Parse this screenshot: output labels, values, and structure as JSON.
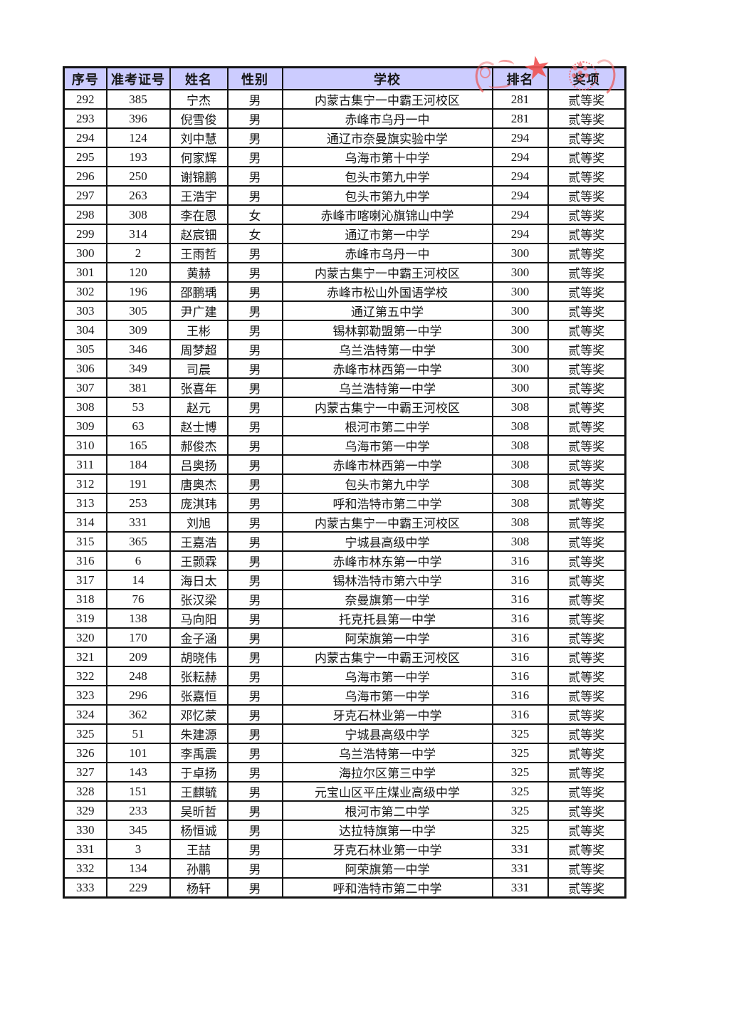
{
  "document": {
    "background": "#ffffff",
    "header_bg": "#ccccff",
    "border_color": "#141414"
  },
  "table": {
    "columns": [
      "序号",
      "准考证号",
      "姓名",
      "性别",
      "学校",
      "排名",
      "奖项"
    ],
    "rows": [
      [
        "292",
        "385",
        "宁杰",
        "男",
        "内蒙古集宁一中霸王河校区",
        "281",
        "贰等奖"
      ],
      [
        "293",
        "396",
        "倪雪俊",
        "男",
        "赤峰市乌丹一中",
        "281",
        "贰等奖"
      ],
      [
        "294",
        "124",
        "刘中慧",
        "男",
        "通辽市奈曼旗实验中学",
        "294",
        "贰等奖"
      ],
      [
        "295",
        "193",
        "何家辉",
        "男",
        "乌海市第十中学",
        "294",
        "贰等奖"
      ],
      [
        "296",
        "250",
        "谢锦鹏",
        "男",
        "包头市第九中学",
        "294",
        "贰等奖"
      ],
      [
        "297",
        "263",
        "王浩宇",
        "男",
        "包头市第九中学",
        "294",
        "贰等奖"
      ],
      [
        "298",
        "308",
        "李在恩",
        "女",
        "赤峰市喀喇沁旗锦山中学",
        "294",
        "贰等奖"
      ],
      [
        "299",
        "314",
        "赵宸钿",
        "女",
        "通辽市第一中学",
        "294",
        "贰等奖"
      ],
      [
        "300",
        "2",
        "王雨哲",
        "男",
        "赤峰市乌丹一中",
        "300",
        "贰等奖"
      ],
      [
        "301",
        "120",
        "黄赫",
        "男",
        "内蒙古集宁一中霸王河校区",
        "300",
        "贰等奖"
      ],
      [
        "302",
        "196",
        "邵鹏瑀",
        "男",
        "赤峰市松山外国语学校",
        "300",
        "贰等奖"
      ],
      [
        "303",
        "305",
        "尹广建",
        "男",
        "通辽第五中学",
        "300",
        "贰等奖"
      ],
      [
        "304",
        "309",
        "王彬",
        "男",
        "锡林郭勒盟第一中学",
        "300",
        "贰等奖"
      ],
      [
        "305",
        "346",
        "周梦超",
        "男",
        "乌兰浩特第一中学",
        "300",
        "贰等奖"
      ],
      [
        "306",
        "349",
        "司晨",
        "男",
        "赤峰市林西第一中学",
        "300",
        "贰等奖"
      ],
      [
        "307",
        "381",
        "张喜年",
        "男",
        "乌兰浩特第一中学",
        "300",
        "贰等奖"
      ],
      [
        "308",
        "53",
        "赵元",
        "男",
        "内蒙古集宁一中霸王河校区",
        "308",
        "贰等奖"
      ],
      [
        "309",
        "63",
        "赵士博",
        "男",
        "根河市第二中学",
        "308",
        "贰等奖"
      ],
      [
        "310",
        "165",
        "郝俊杰",
        "男",
        "乌海市第一中学",
        "308",
        "贰等奖"
      ],
      [
        "311",
        "184",
        "吕奥扬",
        "男",
        "赤峰市林西第一中学",
        "308",
        "贰等奖"
      ],
      [
        "312",
        "191",
        "唐奥杰",
        "男",
        "包头市第九中学",
        "308",
        "贰等奖"
      ],
      [
        "313",
        "253",
        "庞淇玮",
        "男",
        "呼和浩特市第二中学",
        "308",
        "贰等奖"
      ],
      [
        "314",
        "331",
        "刘旭",
        "男",
        "内蒙古集宁一中霸王河校区",
        "308",
        "贰等奖"
      ],
      [
        "315",
        "365",
        "王嘉浩",
        "男",
        "宁城县高级中学",
        "308",
        "贰等奖"
      ],
      [
        "316",
        "6",
        "王颢霖",
        "男",
        "赤峰市林东第一中学",
        "316",
        "贰等奖"
      ],
      [
        "317",
        "14",
        "海日太",
        "男",
        "锡林浩特市第六中学",
        "316",
        "贰等奖"
      ],
      [
        "318",
        "76",
        "张汉梁",
        "男",
        "奈曼旗第一中学",
        "316",
        "贰等奖"
      ],
      [
        "319",
        "138",
        "马向阳",
        "男",
        "托克托县第一中学",
        "316",
        "贰等奖"
      ],
      [
        "320",
        "170",
        "金子涵",
        "男",
        "阿荣旗第一中学",
        "316",
        "贰等奖"
      ],
      [
        "321",
        "209",
        "胡晓伟",
        "男",
        "内蒙古集宁一中霸王河校区",
        "316",
        "贰等奖"
      ],
      [
        "322",
        "248",
        "张耘赫",
        "男",
        "乌海市第一中学",
        "316",
        "贰等奖"
      ],
      [
        "323",
        "296",
        "张嘉恒",
        "男",
        "乌海市第一中学",
        "316",
        "贰等奖"
      ],
      [
        "324",
        "362",
        "邓忆蒙",
        "男",
        "牙克石林业第一中学",
        "316",
        "贰等奖"
      ],
      [
        "325",
        "51",
        "朱建源",
        "男",
        "宁城县高级中学",
        "325",
        "贰等奖"
      ],
      [
        "326",
        "101",
        "李禹震",
        "男",
        "乌兰浩特第一中学",
        "325",
        "贰等奖"
      ],
      [
        "327",
        "143",
        "于卓扬",
        "男",
        "海拉尔区第三中学",
        "325",
        "贰等奖"
      ],
      [
        "328",
        "151",
        "王麒毓",
        "男",
        "元宝山区平庄煤业高级中学",
        "325",
        "贰等奖"
      ],
      [
        "329",
        "233",
        "吴昕哲",
        "男",
        "根河市第二中学",
        "325",
        "贰等奖"
      ],
      [
        "330",
        "345",
        "杨恒诚",
        "男",
        "达拉特旗第一中学",
        "325",
        "贰等奖"
      ],
      [
        "331",
        "3",
        "王喆",
        "男",
        "牙克石林业第一中学",
        "331",
        "贰等奖"
      ],
      [
        "332",
        "134",
        "孙鹏",
        "男",
        "阿荣旗第一中学",
        "331",
        "贰等奖"
      ],
      [
        "333",
        "229",
        "杨轩",
        "男",
        "呼和浩特市第二中学",
        "331",
        "贰等奖"
      ]
    ]
  },
  "stamp": {
    "star_icon": "★",
    "color": "#ef5a5a"
  }
}
